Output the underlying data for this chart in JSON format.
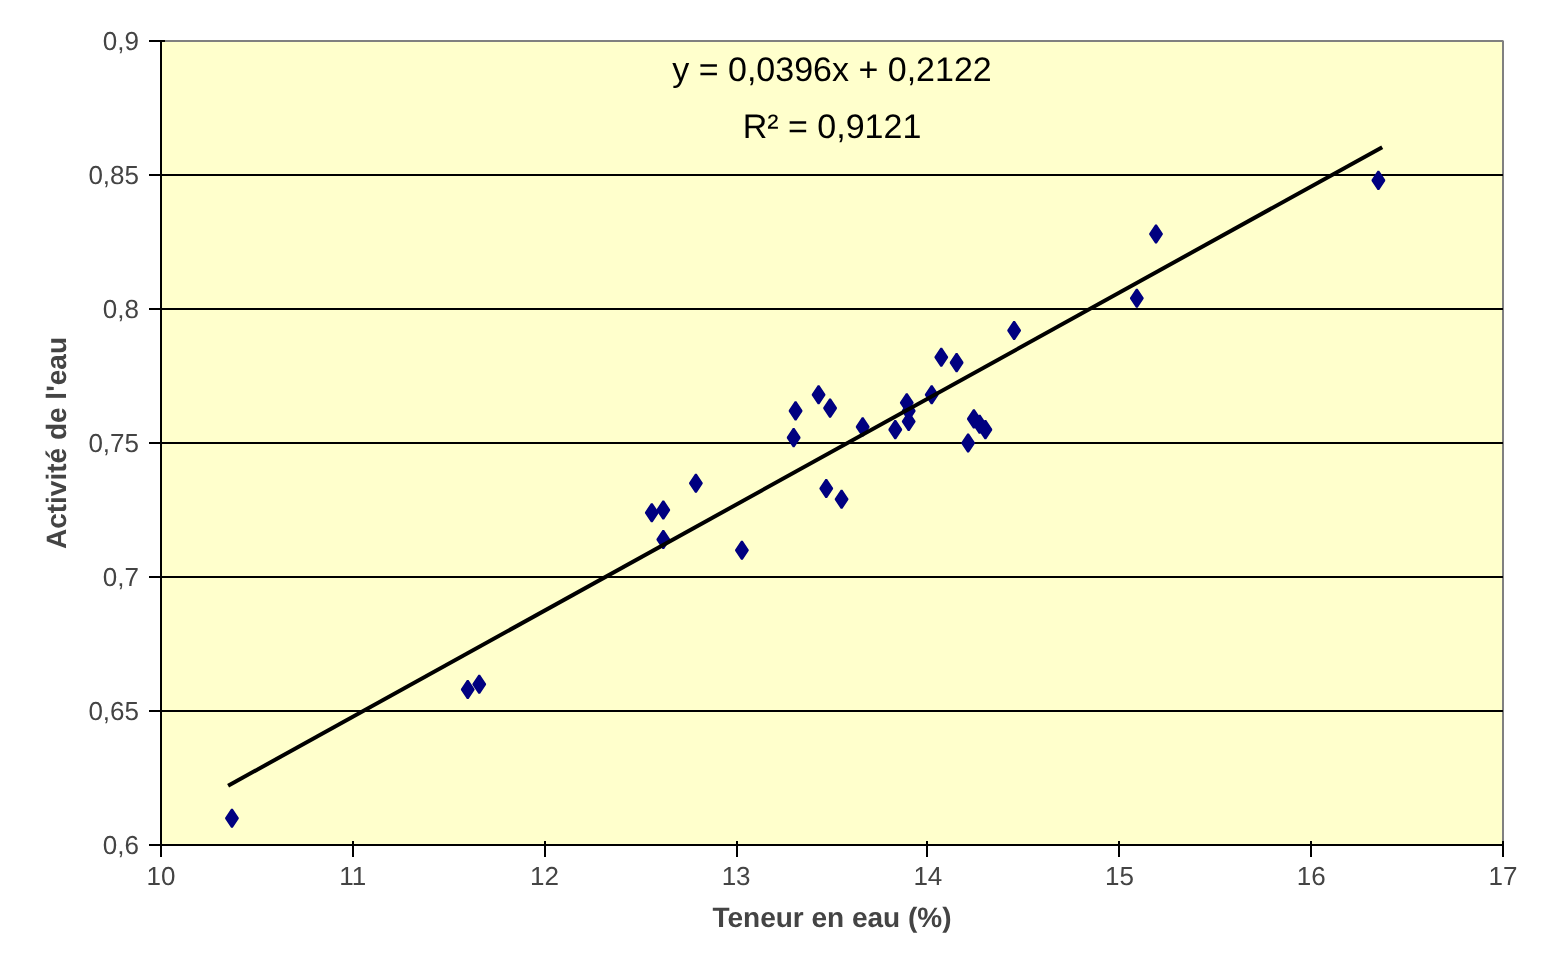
{
  "chart_data": {
    "type": "scatter",
    "xlabel": "Teneur en eau (%)",
    "ylabel": "Activité de l'eau",
    "annotations": [
      "y = 0,0396x + 0,2122",
      "R² = 0,9121"
    ],
    "xlim": [
      10,
      17
    ],
    "ylim": [
      0.6,
      0.9
    ],
    "xticks": [
      10,
      11,
      12,
      13,
      14,
      15,
      16,
      17
    ],
    "yticks": [
      {
        "value": 0.6,
        "label": "0,6"
      },
      {
        "value": 0.65,
        "label": "0,65"
      },
      {
        "value": 0.7,
        "label": "0,7"
      },
      {
        "value": 0.75,
        "label": "0,75"
      },
      {
        "value": 0.8,
        "label": "0,8"
      },
      {
        "value": 0.85,
        "label": "0,85"
      },
      {
        "value": 0.9,
        "label": "0,9"
      }
    ],
    "grid": "y",
    "marker": "diamond",
    "series": [
      {
        "color": "#000080",
        "x": [
          10.37,
          11.6,
          11.66,
          12.56,
          12.62,
          12.62,
          12.79,
          13.03,
          13.3,
          13.31,
          13.43,
          13.47,
          13.49,
          13.55,
          13.66,
          13.83,
          13.89,
          13.9,
          13.9,
          14.02,
          14.07,
          14.15,
          14.21,
          14.24,
          14.27,
          14.3,
          14.45,
          15.09,
          15.19,
          16.35
        ],
        "values": [
          0.61,
          0.658,
          0.66,
          0.724,
          0.725,
          0.714,
          0.735,
          0.71,
          0.752,
          0.762,
          0.768,
          0.733,
          0.763,
          0.729,
          0.756,
          0.755,
          0.765,
          0.762,
          0.758,
          0.768,
          0.782,
          0.78,
          0.75,
          0.759,
          0.757,
          0.755,
          0.792,
          0.804,
          0.828,
          0.848
        ]
      },
      {
        "type": "line",
        "color": "#000000",
        "x": [
          10.35,
          16.37
        ],
        "values": [
          0.6221,
          0.8604
        ],
        "marker": "none",
        "line_style": "solid"
      }
    ]
  }
}
